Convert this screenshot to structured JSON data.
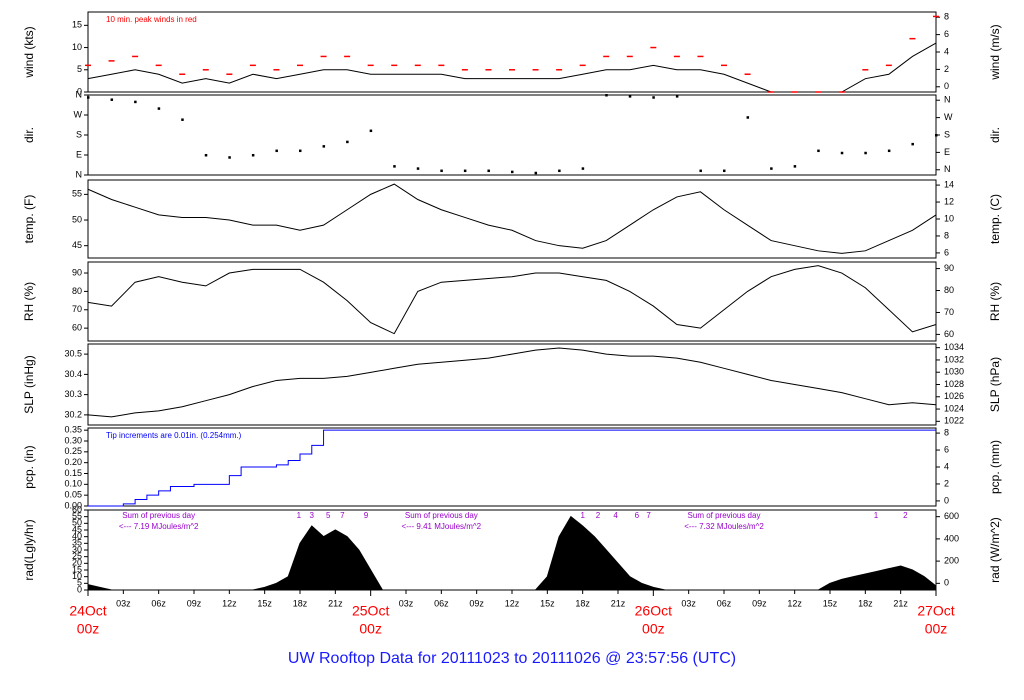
{
  "title": "UW Rooftop Data for 20111023  to  20111026 @ 23:57:56  (UTC)",
  "colors": {
    "axis": "#000000",
    "peak": "#ff0000",
    "precip": "#0000ff",
    "solar_note": "#9900cc",
    "date_label": "#ff0000",
    "title": "#1a1aff"
  },
  "chart_data": [
    {
      "type": "line",
      "id": "wind",
      "left_label": "wind (kts)",
      "right_label": "wind (m/s)",
      "ylim": [
        0,
        18
      ],
      "left_ticks": [
        "0",
        "5",
        "10",
        "15"
      ],
      "right_ticks": [
        "0",
        "2",
        "4",
        "6",
        "8"
      ],
      "annotation": "10 min. peak winds in red",
      "series": [
        {
          "name": "wind speed",
          "x": [
            0,
            2,
            4,
            6,
            8,
            10,
            12,
            14,
            16,
            18,
            20,
            22,
            24,
            26,
            28,
            30,
            32,
            34,
            36,
            38,
            40,
            42,
            44,
            46,
            48,
            50,
            52,
            54,
            56,
            58,
            60,
            62,
            64,
            66,
            68,
            70,
            72
          ],
          "y": [
            3,
            4,
            5,
            4,
            2,
            3,
            2,
            4,
            3,
            4,
            5,
            5,
            4,
            4,
            4,
            4,
            3,
            3,
            3,
            3,
            3,
            4,
            5,
            5,
            6,
            5,
            5,
            4,
            2,
            0,
            0,
            0,
            0,
            3,
            4,
            8,
            11
          ]
        },
        {
          "name": "10 min. peak",
          "x": [
            0,
            2,
            4,
            6,
            8,
            10,
            12,
            14,
            16,
            18,
            20,
            22,
            24,
            26,
            28,
            30,
            32,
            34,
            36,
            38,
            40,
            42,
            44,
            46,
            48,
            50,
            52,
            54,
            56,
            58,
            60,
            62,
            64,
            66,
            68,
            70,
            72
          ],
          "y": [
            6,
            7,
            8,
            6,
            4,
            5,
            4,
            6,
            5,
            6,
            8,
            8,
            6,
            6,
            6,
            6,
            5,
            5,
            5,
            5,
            5,
            6,
            8,
            8,
            10,
            8,
            8,
            6,
            4,
            0,
            0,
            0,
            0,
            5,
            6,
            12,
            17
          ]
        }
      ]
    },
    {
      "type": "scatter",
      "id": "dir",
      "left_label": "dir.",
      "right_label": "dir.",
      "ylim": [
        0,
        360
      ],
      "left_ticks": [
        "N",
        "E",
        "S",
        "W",
        "N"
      ],
      "right_ticks": [
        "N",
        "E",
        "S",
        "W",
        "N"
      ],
      "series": [
        {
          "name": "direction",
          "x": [
            0,
            2,
            4,
            6,
            8,
            10,
            12,
            14,
            16,
            18,
            20,
            22,
            24,
            26,
            28,
            30,
            32,
            34,
            36,
            38,
            40,
            42,
            44,
            46,
            48,
            50,
            52,
            54,
            56,
            58,
            60,
            62,
            64,
            66,
            68,
            70,
            72
          ],
          "y": [
            350,
            340,
            330,
            300,
            250,
            90,
            80,
            90,
            110,
            110,
            130,
            150,
            200,
            40,
            30,
            20,
            20,
            20,
            15,
            10,
            20,
            30,
            360,
            355,
            350,
            355,
            20,
            20,
            260,
            30,
            40,
            110,
            100,
            100,
            110,
            140,
            180
          ]
        }
      ]
    },
    {
      "type": "line",
      "id": "temp",
      "left_label": "temp. (F)",
      "right_label": "temp. (C)",
      "ylim": [
        42.6,
        57.8
      ],
      "left_ticks": [
        "45",
        "50",
        "55"
      ],
      "right_ticks": [
        "6",
        "8",
        "10",
        "12",
        "14"
      ],
      "series": [
        {
          "name": "temperature",
          "x": [
            0,
            2,
            4,
            6,
            8,
            10,
            12,
            14,
            16,
            18,
            20,
            22,
            24,
            26,
            28,
            30,
            32,
            34,
            36,
            38,
            40,
            42,
            44,
            46,
            48,
            50,
            52,
            54,
            56,
            58,
            60,
            62,
            64,
            66,
            68,
            70,
            72
          ],
          "y": [
            56,
            54,
            52.5,
            51,
            50.5,
            50.5,
            50,
            49,
            49,
            48,
            49,
            52,
            55,
            57,
            54,
            52,
            50.5,
            49,
            48,
            46,
            45,
            44.5,
            46,
            49,
            52,
            54.5,
            55.5,
            52,
            49,
            46,
            45,
            44,
            43.5,
            44,
            46,
            48,
            51
          ]
        }
      ]
    },
    {
      "type": "line",
      "id": "rh",
      "left_label": "RH (%)",
      "right_label": "RH (%)",
      "ylim": [
        53,
        96
      ],
      "left_ticks": [
        "60",
        "70",
        "80",
        "90"
      ],
      "right_ticks": [
        "60",
        "70",
        "80",
        "90"
      ],
      "series": [
        {
          "name": "relative humidity",
          "x": [
            0,
            2,
            4,
            6,
            8,
            10,
            12,
            14,
            16,
            18,
            20,
            22,
            24,
            26,
            28,
            30,
            32,
            34,
            36,
            38,
            40,
            42,
            44,
            46,
            48,
            50,
            52,
            54,
            56,
            58,
            60,
            62,
            64,
            66,
            68,
            70,
            72
          ],
          "y": [
            74,
            72,
            85,
            88,
            85,
            83,
            90,
            92,
            92,
            92,
            85,
            75,
            63,
            57,
            80,
            85,
            86,
            87,
            88,
            90,
            90,
            88,
            86,
            80,
            72,
            62,
            60,
            70,
            80,
            88,
            92,
            94,
            90,
            82,
            70,
            58,
            62
          ]
        }
      ]
    },
    {
      "type": "line",
      "id": "slp",
      "left_label": "SLP (inHg)",
      "right_label": "SLP (hPa)",
      "ylim": [
        30.15,
        30.55
      ],
      "left_ticks": [
        "30.2",
        "30.3",
        "30.4",
        "30.5"
      ],
      "right_ticks": [
        "1022",
        "1024",
        "1026",
        "1028",
        "1030",
        "1032",
        "1034"
      ],
      "series": [
        {
          "name": "sea level pressure",
          "x": [
            0,
            2,
            4,
            6,
            8,
            10,
            12,
            14,
            16,
            18,
            20,
            22,
            24,
            26,
            28,
            30,
            32,
            34,
            36,
            38,
            40,
            42,
            44,
            46,
            48,
            50,
            52,
            54,
            56,
            58,
            60,
            62,
            64,
            66,
            68,
            70,
            72
          ],
          "y": [
            30.2,
            30.19,
            30.21,
            30.22,
            30.24,
            30.27,
            30.3,
            30.34,
            30.37,
            30.38,
            30.38,
            30.39,
            30.41,
            30.43,
            30.45,
            30.46,
            30.47,
            30.48,
            30.5,
            30.52,
            30.53,
            30.52,
            30.5,
            30.49,
            30.49,
            30.48,
            30.46,
            30.43,
            30.4,
            30.37,
            30.35,
            30.33,
            30.31,
            30.28,
            30.25,
            30.26,
            30.25
          ]
        }
      ]
    },
    {
      "type": "line",
      "id": "pcp",
      "left_label": "pcp. (in)",
      "right_label": "pcp. (mm)",
      "ylim": [
        0,
        0.36
      ],
      "left_ticks": [
        "0.00",
        "0.05",
        "0.10",
        "0.15",
        "0.20",
        "0.25",
        "0.30",
        "0.35"
      ],
      "right_ticks": [
        "0",
        "2",
        "4",
        "6",
        "8"
      ],
      "annotation": "Tip increments are 0.01in. (0.254mm.)",
      "series": [
        {
          "name": "precipitation",
          "x": [
            0,
            1,
            2,
            3,
            4,
            5,
            6,
            7,
            8,
            9,
            10,
            11,
            12,
            13,
            14,
            15,
            16,
            17,
            18,
            19,
            20,
            21,
            22,
            23,
            24,
            72
          ],
          "y": [
            0,
            0,
            0,
            0.01,
            0.03,
            0.05,
            0.07,
            0.09,
            0.09,
            0.1,
            0.1,
            0.1,
            0.14,
            0.18,
            0.18,
            0.18,
            0.19,
            0.21,
            0.24,
            0.28,
            0.35,
            0.35,
            0.35,
            0.35,
            0.35,
            0.35
          ]
        }
      ]
    },
    {
      "type": "area",
      "id": "rad",
      "left_label": "rad(Lgly/hr)",
      "right_label": "rad (W/m^2)",
      "ylim": [
        0,
        60
      ],
      "left_ticks": [
        "0",
        "5",
        "10",
        "15",
        "20",
        "25",
        "30",
        "35",
        "40",
        "45",
        "50",
        "55",
        "60"
      ],
      "right_ticks": [
        "0",
        "200",
        "400",
        "600"
      ],
      "series": [
        {
          "name": "solar radiation",
          "x": [
            0,
            1,
            2,
            12,
            14,
            15,
            16,
            17,
            18,
            19,
            20,
            21,
            22,
            23,
            24,
            25,
            36,
            38,
            39,
            40,
            41,
            42,
            43,
            44,
            45,
            46,
            47,
            48,
            49,
            60,
            62,
            63,
            64,
            65,
            66,
            67,
            68,
            69,
            70,
            71,
            72
          ],
          "y": [
            4,
            2,
            0,
            0,
            0,
            2,
            5,
            10,
            35,
            48,
            40,
            45,
            40,
            30,
            15,
            0,
            0,
            0,
            10,
            40,
            55,
            48,
            40,
            30,
            20,
            10,
            5,
            2,
            0,
            0,
            0,
            5,
            8,
            10,
            12,
            14,
            16,
            18,
            15,
            10,
            3
          ]
        }
      ],
      "day_notes": [
        {
          "line1": "Sum of previous day",
          "line2": "<--- 7.19 MJoules/m^2"
        },
        {
          "line1": "Sum of previous day",
          "line2": "<--- 9.41 MJoules/m^2"
        },
        {
          "line1": "Sum of previous day",
          "line2": "<--- 7.32 MJoules/m^2"
        }
      ],
      "marks": [
        {
          "x": 17.9,
          "label": "1"
        },
        {
          "x": 19.0,
          "label": "3"
        },
        {
          "x": 20.4,
          "label": "5"
        },
        {
          "x": 21.6,
          "label": "7"
        },
        {
          "x": 23.6,
          "label": "9"
        },
        {
          "x": 42.0,
          "label": "1"
        },
        {
          "x": 43.3,
          "label": "2"
        },
        {
          "x": 44.8,
          "label": "4"
        },
        {
          "x": 46.6,
          "label": "6"
        },
        {
          "x": 47.6,
          "label": "7"
        },
        {
          "x": 66.9,
          "label": "1"
        },
        {
          "x": 69.4,
          "label": "2"
        }
      ]
    }
  ],
  "x_axis": {
    "hours": [
      0,
      72
    ],
    "hour_ticks": [
      {
        "x": 3,
        "label": "03z"
      },
      {
        "x": 6,
        "label": "06z"
      },
      {
        "x": 9,
        "label": "09z"
      },
      {
        "x": 12,
        "label": "12z"
      },
      {
        "x": 15,
        "label": "15z"
      },
      {
        "x": 18,
        "label": "18z"
      },
      {
        "x": 21,
        "label": "21z"
      },
      {
        "x": 27,
        "label": "03z"
      },
      {
        "x": 30,
        "label": "06z"
      },
      {
        "x": 33,
        "label": "09z"
      },
      {
        "x": 36,
        "label": "12z"
      },
      {
        "x": 39,
        "label": "15z"
      },
      {
        "x": 42,
        "label": "18z"
      },
      {
        "x": 45,
        "label": "21z"
      },
      {
        "x": 51,
        "label": "03z"
      },
      {
        "x": 54,
        "label": "06z"
      },
      {
        "x": 57,
        "label": "09z"
      },
      {
        "x": 60,
        "label": "12z"
      },
      {
        "x": 63,
        "label": "15z"
      },
      {
        "x": 66,
        "label": "18z"
      },
      {
        "x": 69,
        "label": "21z"
      }
    ],
    "date_ticks": [
      {
        "x": 0,
        "date": "24Oct",
        "time": "00z"
      },
      {
        "x": 24,
        "date": "25Oct",
        "time": "00z"
      },
      {
        "x": 48,
        "date": "26Oct",
        "time": "00z"
      },
      {
        "x": 72,
        "date": "27Oct",
        "time": "00z"
      }
    ]
  }
}
